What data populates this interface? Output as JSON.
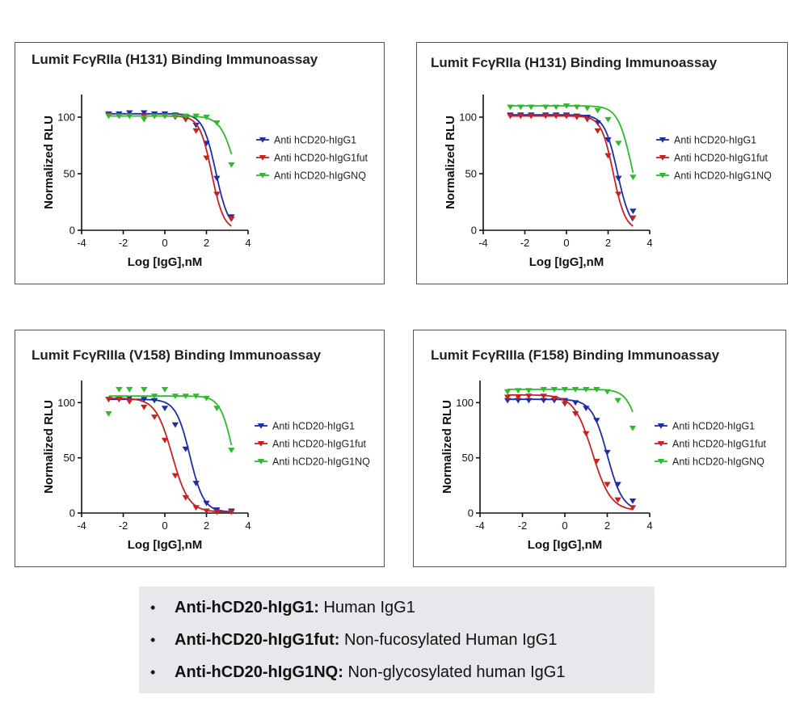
{
  "chart_data": [
    {
      "type": "line",
      "title": "Lumit FcγRIIa (H131) Binding Immunoassay",
      "xlabel": "Log [IgG],nM",
      "ylabel": "Normalized RLU",
      "xlim": [
        -4,
        4
      ],
      "ylim": [
        0,
        120
      ],
      "xticks": [
        -4,
        -2,
        0,
        2,
        4
      ],
      "yticks": [
        0,
        50,
        100
      ],
      "legend_position": "right",
      "x": [
        -2.7,
        -2.2,
        -1.7,
        -1.0,
        -0.5,
        0.0,
        0.5,
        1.0,
        1.5,
        2.0,
        2.5,
        3.2
      ],
      "series": [
        {
          "name": "Anti hCD20-hIgG1",
          "color": "#1f2ea8",
          "values": [
            103,
            103,
            104,
            104,
            103,
            103,
            102,
            100,
            93,
            77,
            46,
            12
          ],
          "curve": {
            "top": 103,
            "bottom": 0,
            "ec50_log": 2.45,
            "hill": 1.4
          }
        },
        {
          "name": "Anti hCD20-hIgG1fut",
          "color": "#cc2020",
          "values": [
            102,
            101,
            101,
            101,
            101,
            101,
            100,
            98,
            88,
            64,
            32,
            10
          ],
          "curve": {
            "top": 101,
            "bottom": 0,
            "ec50_log": 2.25,
            "hill": 1.5
          }
        },
        {
          "name": "Anti hCD20-hIgGNQ",
          "color": "#2dbb2d",
          "values": [
            101,
            101,
            101,
            98,
            101,
            101,
            101,
            101,
            101,
            100,
            95,
            58
          ],
          "curve": {
            "top": 101,
            "bottom": 0,
            "ec50_log": 3.45,
            "hill": 1.2
          }
        }
      ]
    },
    {
      "type": "line",
      "title": "Lumit FcγRIIa (H131) Binding Immunoassay",
      "xlabel": "Log [IgG],nM",
      "ylabel": "Normalized RLU",
      "xlim": [
        -4,
        4
      ],
      "ylim": [
        0,
        120
      ],
      "xticks": [
        -4,
        -2,
        0,
        2,
        4
      ],
      "yticks": [
        0,
        50,
        100
      ],
      "legend_position": "right",
      "x": [
        -2.7,
        -2.2,
        -1.7,
        -1.0,
        -0.5,
        0.0,
        0.5,
        1.0,
        1.5,
        2.0,
        2.5,
        3.2
      ],
      "series": [
        {
          "name": "Anti hCD20-hIgG1",
          "color": "#1f2ea8",
          "values": [
            102,
            102,
            102,
            102,
            102,
            102,
            101,
            100,
            95,
            80,
            46,
            17
          ],
          "curve": {
            "top": 102,
            "bottom": 0,
            "ec50_log": 2.45,
            "hill": 1.4
          }
        },
        {
          "name": "Anti hCD20-hIgG1fut",
          "color": "#cc2020",
          "values": [
            101,
            101,
            101,
            101,
            101,
            101,
            100,
            98,
            88,
            66,
            32,
            11
          ],
          "curve": {
            "top": 101,
            "bottom": 0,
            "ec50_log": 2.25,
            "hill": 1.5
          }
        },
        {
          "name": "Anti hCD20-hIgG1NQ",
          "color": "#2dbb2d",
          "values": [
            109,
            109,
            109,
            109,
            109,
            110,
            109,
            108,
            106,
            98,
            77,
            47
          ],
          "curve": {
            "top": 110,
            "bottom": 0,
            "ec50_log": 3.15,
            "hill": 1.3
          }
        }
      ]
    },
    {
      "type": "line",
      "title": "Lumit FcγRIIIa (V158) Binding Immunoassay",
      "xlabel": "Log [IgG],nM",
      "ylabel": "Normalized RLU",
      "xlim": [
        -4,
        4
      ],
      "ylim": [
        0,
        120
      ],
      "xticks": [
        -4,
        -2,
        0,
        2,
        4
      ],
      "yticks": [
        0,
        50,
        100
      ],
      "legend_position": "right",
      "x": [
        -2.7,
        -2.2,
        -1.7,
        -1.0,
        -0.5,
        0.0,
        0.5,
        1.0,
        1.5,
        2.0,
        2.5,
        3.2
      ],
      "series": [
        {
          "name": "Anti hCD20-hIgG1",
          "color": "#1f2ea8",
          "values": [
            103,
            103,
            104,
            103,
            102,
            95,
            80,
            58,
            27,
            9,
            3,
            2
          ],
          "curve": {
            "top": 103,
            "bottom": 1,
            "ec50_log": 1.2,
            "hill": 1.3
          }
        },
        {
          "name": "Anti hCD20-hIgG1fut",
          "color": "#cc2020",
          "values": [
            103,
            103,
            101,
            96,
            87,
            66,
            34,
            14,
            5,
            2,
            1,
            1
          ],
          "curve": {
            "top": 104,
            "bottom": 1,
            "ec50_log": 0.35,
            "hill": 1.1
          }
        },
        {
          "name": "Anti hCD20-hIgG1NQ",
          "color": "#2dbb2d",
          "values": [
            90,
            112,
            112,
            112,
            106,
            112,
            106,
            106,
            106,
            104,
            95,
            57
          ],
          "curve": {
            "top": 106,
            "bottom": 0,
            "ec50_log": 3.3,
            "hill": 1.4
          }
        }
      ]
    },
    {
      "type": "line",
      "title": "Lumit FcγRIIIa (F158) Binding Immunoassay",
      "xlabel": "Log [IgG],nM",
      "ylabel": "Normalized RLU",
      "xlim": [
        -4,
        4
      ],
      "ylim": [
        0,
        120
      ],
      "xticks": [
        -4,
        -2,
        0,
        2,
        4
      ],
      "yticks": [
        0,
        50,
        100
      ],
      "legend_position": "right",
      "x": [
        -2.7,
        -2.2,
        -1.7,
        -1.0,
        -0.5,
        0.0,
        0.5,
        1.0,
        1.5,
        2.0,
        2.5,
        3.2
      ],
      "series": [
        {
          "name": "Anti hCD20-hIgG1",
          "color": "#1f2ea8",
          "values": [
            102,
            102,
            102,
            102,
            102,
            102,
            100,
            95,
            84,
            55,
            26,
            11
          ],
          "curve": {
            "top": 103,
            "bottom": 2,
            "ec50_log": 2.0,
            "hill": 1.2
          }
        },
        {
          "name": "Anti hCD20-hIgG1fut",
          "color": "#cc2020",
          "values": [
            105,
            105,
            106,
            106,
            104,
            99,
            90,
            72,
            47,
            26,
            12,
            5
          ],
          "curve": {
            "top": 107,
            "bottom": 2,
            "ec50_log": 1.3,
            "hill": 1.0
          }
        },
        {
          "name": "Anti hCD20-hIgGNQ",
          "color": "#2dbb2d",
          "values": [
            110,
            111,
            111,
            112,
            112,
            112,
            112,
            112,
            112,
            110,
            102,
            77
          ],
          "curve": {
            "top": 112,
            "bottom": 0,
            "ec50_log": 3.7,
            "hill": 1.3
          }
        }
      ]
    }
  ],
  "notes": [
    {
      "term": "Anti-hCD20-hIgG1:",
      "desc": " Human IgG1"
    },
    {
      "term": "Anti-hCD20-hIgG1fut:",
      "desc": " Non-fucosylated Human IgG1"
    },
    {
      "term": "Anti-hCD20-hIgG1NQ:",
      "desc": " Non-glycosylated human IgG1"
    }
  ],
  "bullet": "•"
}
